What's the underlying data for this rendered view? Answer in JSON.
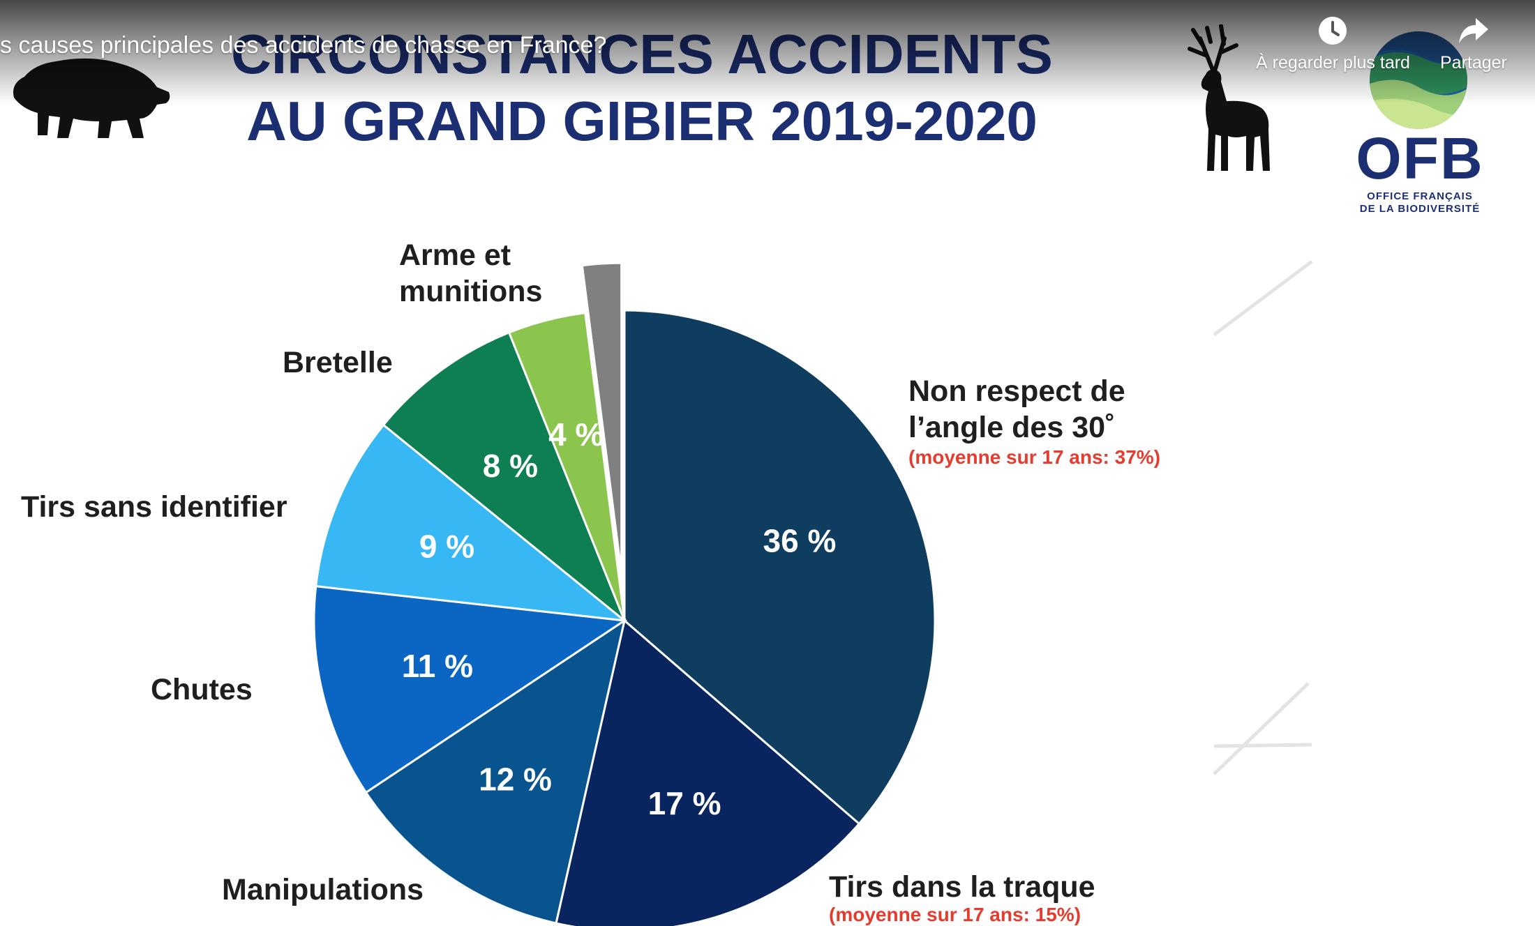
{
  "video": {
    "title": "s causes principales des accidents de chasse en France?",
    "watch_later_label": "À regarder plus tard",
    "share_label": "Partager"
  },
  "slide": {
    "title_line1": "CIRCONSTANCES ACCIDENTS",
    "title_line2": "AU GRAND GIBIER 2019-2020"
  },
  "logo": {
    "abbr": "OFB",
    "line1": "OFFICE FRANÇAIS",
    "line2": "DE LA BIODIVERSITÉ"
  },
  "icons": {
    "boar": "boar-silhouette-icon",
    "deer": "deer-silhouette-icon",
    "watch_later": "clock-icon",
    "share": "share-arrow-icon"
  },
  "chart_data": {
    "type": "pie",
    "title": "CIRCONSTANCES ACCIDENTS AU GRAND GIBIER 2019-2020",
    "slices": [
      {
        "label": "Non respect de l'angle des 30°",
        "value": 36,
        "value_label": "36 %",
        "color": "#0e3d5f",
        "note": "(moyenne sur 17 ans: 37%)"
      },
      {
        "label": "Tirs dans la traque",
        "value": 17,
        "value_label": "17 %",
        "color": "#082560",
        "note": "(moyenne sur 17 ans: 15%)"
      },
      {
        "label": "Manipulations",
        "value": 12,
        "value_label": "12 %",
        "color": "#08548f",
        "note": ""
      },
      {
        "label": "Chutes",
        "value": 11,
        "value_label": "11 %",
        "color": "#0a66c2",
        "note": ""
      },
      {
        "label": "Tirs sans identifier",
        "value": 9,
        "value_label": "9 %",
        "color": "#37b8f4",
        "note": ""
      },
      {
        "label": "Bretelle",
        "value": 8,
        "value_label": "8 %",
        "color": "#0e7f52",
        "note": ""
      },
      {
        "label": "Arme et munitions",
        "value": 4,
        "value_label": "4 %",
        "color": "#8cc54e",
        "note": ""
      },
      {
        "label": "",
        "value": 2,
        "value_label": "",
        "color": "#808080",
        "note": ""
      }
    ]
  },
  "labels": {
    "non_respect_line1": "Non respect de",
    "non_respect_line2": "l’angle des 30˚",
    "non_respect_note": "(moyenne sur 17 ans: 37%)",
    "traque": "Tirs dans la traque",
    "traque_note": "(moyenne sur 17 ans: 15%)",
    "manipulations": "Manipulations",
    "chutes": "Chutes",
    "tirs_sans": "Tirs sans identifier",
    "bretelle": "Bretelle",
    "arme_line1": "Arme et",
    "arme_line2": "munitions"
  }
}
